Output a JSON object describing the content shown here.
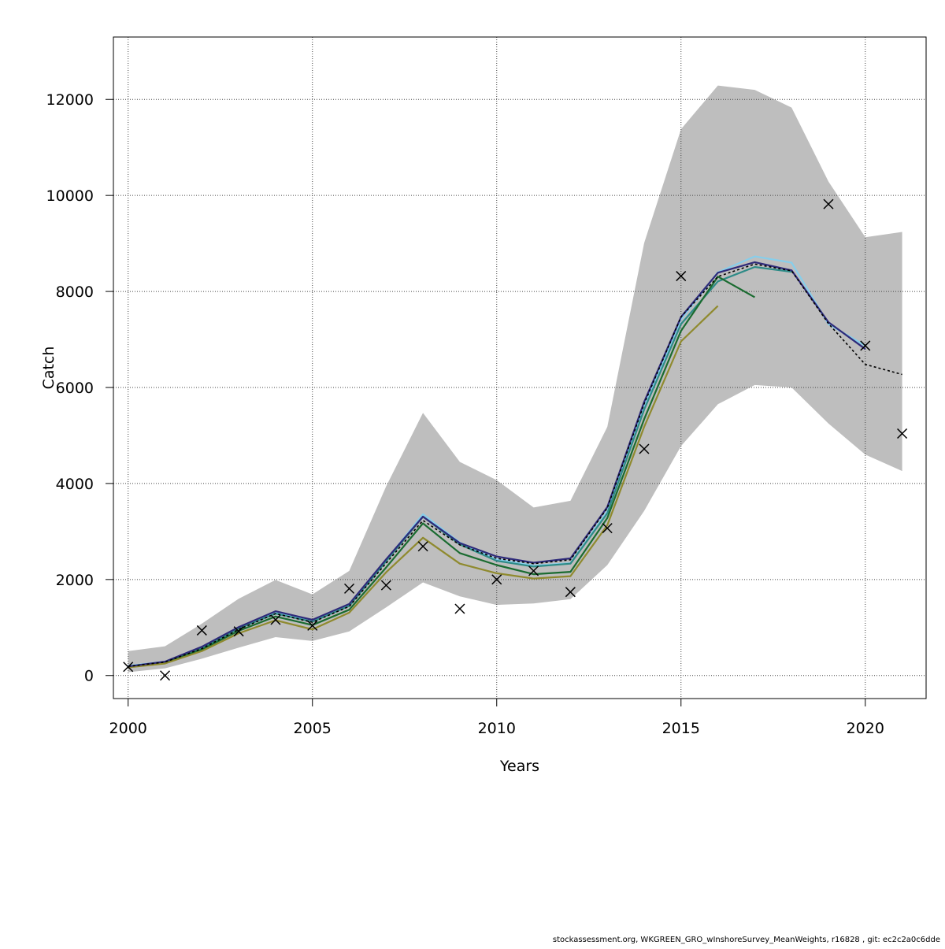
{
  "chart_data": {
    "type": "line",
    "xlabel": "Years",
    "ylabel": "Catch",
    "xlim": [
      1999.6,
      2021.65
    ],
    "ylim": [
      -480,
      13300
    ],
    "xticks": [
      "2000",
      "2005",
      "2010",
      "2015",
      "2020"
    ],
    "yticks": [
      "0",
      "2000",
      "4000",
      "6000",
      "8000",
      "10000",
      "12000"
    ],
    "grid": true,
    "legend": "none",
    "confidence_band": {
      "color": "#bebebe",
      "x": [
        2000,
        2001,
        2002,
        2003,
        2004,
        2005,
        2006,
        2007,
        2008,
        2009,
        2010,
        2011,
        2012,
        2013,
        2014,
        2015,
        2016,
        2017,
        2018,
        2019,
        2020,
        2021
      ],
      "lower": [
        70,
        150,
        350,
        580,
        800,
        720,
        920,
        1420,
        1940,
        1650,
        1470,
        1500,
        1590,
        2300,
        3430,
        4780,
        5650,
        6050,
        6000,
        5250,
        4600,
        4260
      ],
      "upper": [
        510,
        610,
        1080,
        1600,
        1990,
        1690,
        2180,
        3940,
        5470,
        4450,
        4070,
        3500,
        3640,
        5180,
        9010,
        11380,
        12290,
        12200,
        11830,
        10290,
        9130,
        9240
      ]
    },
    "observations": {
      "marker": "x",
      "x": [
        2000,
        2001,
        2002,
        2003,
        2004,
        2005,
        2006,
        2007,
        2008,
        2009,
        2010,
        2011,
        2012,
        2013,
        2014,
        2015,
        2019,
        2020,
        2021
      ],
      "y": [
        180,
        0,
        940,
        920,
        1160,
        1040,
        1810,
        1880,
        2690,
        1390,
        2000,
        2180,
        1740,
        3070,
        4720,
        8320,
        9820,
        6870,
        5040
      ]
    },
    "series": [
      {
        "color": "#000000",
        "dash": "dotted",
        "x": [
          2000,
          2001,
          2002,
          2003,
          2004,
          2005,
          2006,
          2007,
          2008,
          2009,
          2010,
          2011,
          2012,
          2013,
          2014,
          2015,
          2016,
          2017,
          2018,
          2019,
          2020,
          2021
        ],
        "y": [
          190,
          280,
          560,
          960,
          1290,
          1110,
          1440,
          2340,
          3230,
          2720,
          2440,
          2330,
          2410,
          3490,
          5660,
          7470,
          8310,
          8570,
          8430,
          7330,
          6480,
          6270
        ]
      },
      {
        "color": "#87ceeb",
        "dash": "solid",
        "x": [
          2000,
          2001,
          2002,
          2003,
          2004,
          2005,
          2006,
          2007,
          2008,
          2009,
          2010,
          2011,
          2012,
          2013,
          2014,
          2015,
          2016,
          2017,
          2018,
          2019,
          2020
        ],
        "y": [
          200,
          290,
          590,
          1000,
          1310,
          1140,
          1470,
          2400,
          3360,
          2770,
          2420,
          2290,
          2340,
          3420,
          5600,
          7420,
          8400,
          8730,
          8600,
          7320,
          6870
        ]
      },
      {
        "color": "#2e8b87",
        "dash": "solid",
        "x": [
          2000,
          2001,
          2002,
          2003,
          2004,
          2005,
          2006,
          2007,
          2008,
          2009,
          2010,
          2011,
          2012,
          2013,
          2014,
          2015,
          2016,
          2017,
          2018
        ],
        "y": [
          190,
          280,
          570,
          980,
          1290,
          1120,
          1450,
          2380,
          3310,
          2730,
          2390,
          2270,
          2330,
          3380,
          5540,
          7320,
          8210,
          8510,
          8410
        ]
      },
      {
        "color": "#1a6b30",
        "dash": "solid",
        "x": [
          2000,
          2001,
          2002,
          2003,
          2004,
          2005,
          2006,
          2007,
          2008,
          2009,
          2010,
          2011,
          2012,
          2013,
          2014,
          2015,
          2016,
          2017
        ],
        "y": [
          180,
          270,
          540,
          930,
          1230,
          1050,
          1370,
          2250,
          3170,
          2550,
          2300,
          2110,
          2160,
          3280,
          5340,
          7180,
          8310,
          7880
        ]
      },
      {
        "color": "#8f8a2e",
        "dash": "solid",
        "x": [
          2000,
          2001,
          2002,
          2003,
          2004,
          2005,
          2006,
          2007,
          2008,
          2009,
          2010,
          2011,
          2012,
          2013,
          2014,
          2015,
          2016
        ],
        "y": [
          170,
          250,
          510,
          880,
          1150,
          960,
          1310,
          2150,
          2870,
          2330,
          2130,
          2020,
          2070,
          3130,
          5180,
          6960,
          7700
        ]
      },
      {
        "color": "#2e2a7a",
        "dash": "solid",
        "x": [
          2000,
          2001,
          2002,
          2003,
          2004,
          2005,
          2006,
          2007,
          2008,
          2009,
          2010,
          2011,
          2012,
          2013,
          2014,
          2015,
          2016,
          2017,
          2018,
          2019,
          2020
        ],
        "y": [
          190,
          290,
          600,
          1010,
          1340,
          1160,
          1490,
          2420,
          3310,
          2760,
          2480,
          2350,
          2440,
          3510,
          5700,
          7470,
          8390,
          8610,
          8440,
          7360,
          6800
        ]
      }
    ]
  },
  "footer": {
    "note": "stockassessment.org, WKGREEN_GRO_wInshoreSurvey_MeanWeights, r16828 , git: ec2c2a0c6dde"
  }
}
